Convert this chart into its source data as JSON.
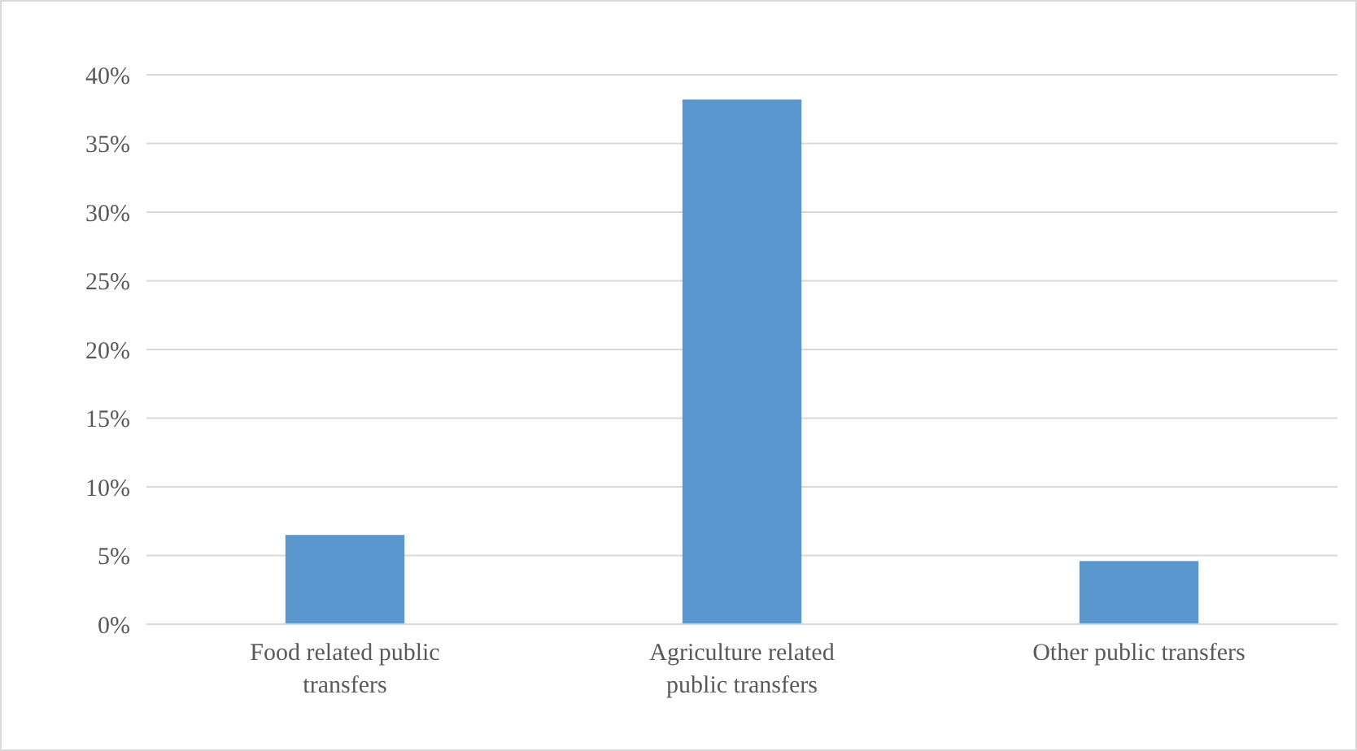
{
  "chart_data": {
    "type": "bar",
    "categories": [
      "Food related public transfers",
      "Agriculture related public transfers",
      "Other public transfers"
    ],
    "values": [
      6.5,
      38.2,
      4.6
    ],
    "color": "#5b97cf",
    "ylim": [
      0,
      40
    ],
    "yticks": [
      {
        "value": 0,
        "label": "0%"
      },
      {
        "value": 5,
        "label": "5%"
      },
      {
        "value": 10,
        "label": "10%"
      },
      {
        "value": 15,
        "label": "15%"
      },
      {
        "value": 20,
        "label": "20%"
      },
      {
        "value": 25,
        "label": "25%"
      },
      {
        "value": 30,
        "label": "30%"
      },
      {
        "value": 35,
        "label": "35%"
      },
      {
        "value": 40,
        "label": "40%"
      }
    ],
    "grid": "y"
  }
}
